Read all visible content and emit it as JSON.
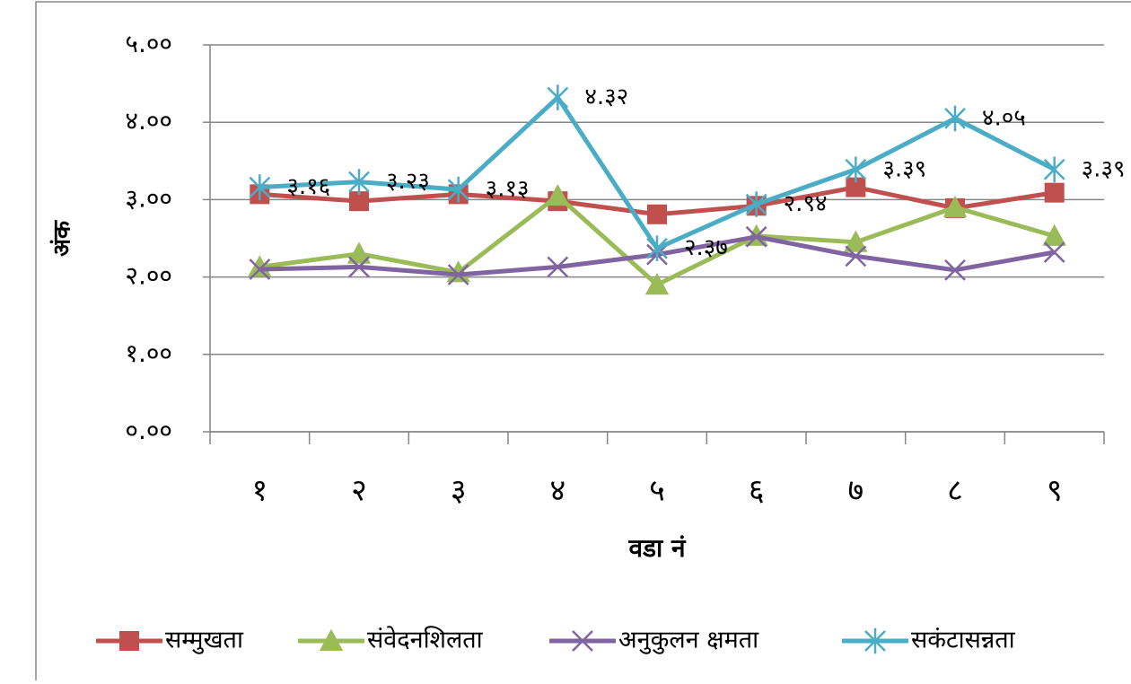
{
  "chart_data": {
    "type": "line",
    "xlabel": "वडा नं",
    "ylabel": "अंक",
    "categories": [
      "१",
      "२",
      "३",
      "४",
      "५",
      "६",
      "७",
      "८",
      "९"
    ],
    "series": [
      {
        "name": "सम्मुखता",
        "color": "#c0504d",
        "marker": "square",
        "values": [
          3.07,
          2.98,
          3.07,
          2.98,
          2.81,
          2.92,
          3.16,
          2.89,
          3.09
        ]
      },
      {
        "name": "संवेदनशिलता",
        "color": "#9bbb59",
        "marker": "triangle",
        "values": [
          2.13,
          2.3,
          2.06,
          3.05,
          1.9,
          2.53,
          2.45,
          2.9,
          2.53
        ]
      },
      {
        "name": "अनुकुलन क्षमता",
        "color": "#8064a2",
        "marker": "x",
        "values": [
          2.1,
          2.13,
          2.03,
          2.13,
          2.29,
          2.52,
          2.27,
          2.09,
          2.32
        ]
      },
      {
        "name": "सकंटासन्नता",
        "color": "#4bacc6",
        "marker": "star",
        "values": [
          3.16,
          3.23,
          3.13,
          4.32,
          2.37,
          2.94,
          3.39,
          4.05,
          3.39
        ],
        "value_labels": [
          "३.१६",
          "३.२३",
          "३.१३",
          "४.३२",
          "२.३७",
          "२.९४",
          "३.३९",
          "४.०५",
          "३.३९"
        ]
      }
    ],
    "ylim": [
      0,
      5
    ],
    "yticks": [
      {
        "value": 0,
        "label": "०.००"
      },
      {
        "value": 1,
        "label": "१.००"
      },
      {
        "value": 2,
        "label": "२.००"
      },
      {
        "value": 3,
        "label": "३.००"
      },
      {
        "value": 4,
        "label": "४.००"
      },
      {
        "value": 5,
        "label": "५.००"
      }
    ],
    "grid": true,
    "legend": "bottom"
  }
}
